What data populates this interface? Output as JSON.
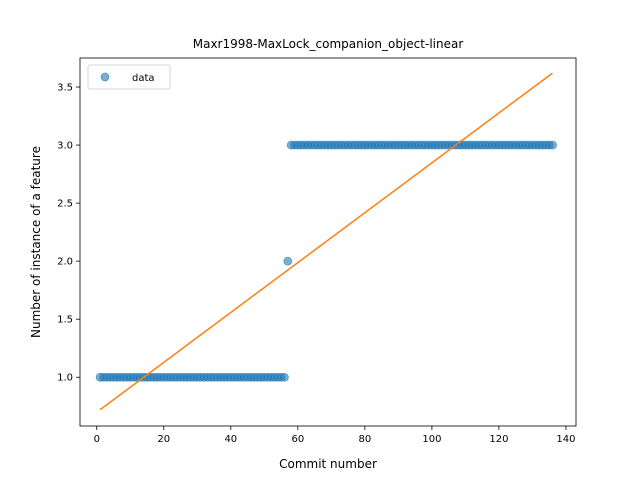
{
  "chart_data": {
    "type": "scatter",
    "title": "Maxr1998-MaxLock_companion_object-linear",
    "xlabel": "Commit number",
    "ylabel": "Number of instance of a feature",
    "xlim": [
      -5,
      143
    ],
    "ylim": [
      0.58,
      3.75
    ],
    "x_ticks": [
      0,
      20,
      40,
      60,
      80,
      100,
      120,
      140
    ],
    "y_ticks": [
      1.0,
      1.5,
      2.0,
      2.5,
      3.0,
      3.5
    ],
    "x_tick_labels": [
      "0",
      "20",
      "40",
      "60",
      "80",
      "100",
      "120",
      "140"
    ],
    "y_tick_labels": [
      "1.0",
      "1.5",
      "2.0",
      "2.5",
      "3.0",
      "3.5"
    ],
    "grid": false,
    "legend_position": "top-left",
    "series": [
      {
        "name": "data",
        "kind": "scatter",
        "color": "#1f77b4",
        "segments": [
          {
            "x_start": 1,
            "x_end": 56,
            "y": 1.0
          },
          {
            "x_start": 57,
            "x_end": 57,
            "y": 2.0
          },
          {
            "x_start": 58,
            "x_end": 136,
            "y": 3.0
          }
        ]
      },
      {
        "kind": "line",
        "color": "#ff7f0e",
        "x": [
          1,
          136
        ],
        "y": [
          0.72,
          3.62
        ]
      }
    ]
  }
}
